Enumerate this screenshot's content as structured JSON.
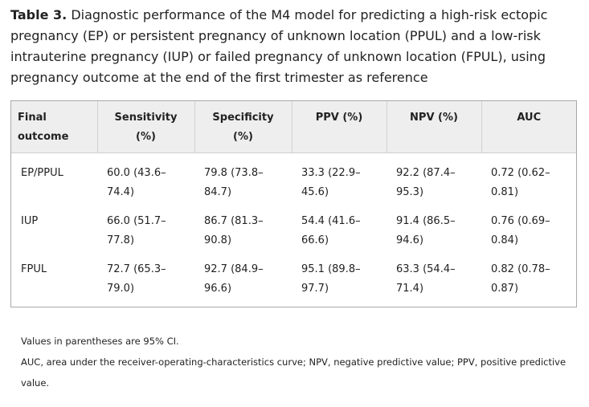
{
  "caption": {
    "label": "Table 3.",
    "text": "Diagnostic performance of the M4 model for predicting a high-risk ectopic pregnancy (EP) or persistent pregnancy of unknown location (PPUL) and a low-risk intrauterine pregnancy (IUP) or failed pregnancy of unknown location (FPUL), using pregnancy outcome at the end of the first trimester as reference"
  },
  "table": {
    "headers": [
      "Final outcome",
      "Sensitivity (%)",
      "Specificity (%)",
      "PPV (%)",
      "NPV (%)",
      "AUC"
    ],
    "rows": [
      [
        "EP/PPUL",
        "60.0 (43.6–74.4)",
        "79.8 (73.8–84.7)",
        "33.3 (22.9–45.6)",
        "92.2 (87.4–95.3)",
        "0.72 (0.62–0.81)"
      ],
      [
        "IUP",
        "66.0 (51.7–77.8)",
        "86.7 (81.3–90.8)",
        "54.4 (41.6–66.6)",
        "91.4 (86.5–94.6)",
        "0.76 (0.69–0.84)"
      ],
      [
        "FPUL",
        "72.7 (65.3–79.0)",
        "92.7 (84.9–96.6)",
        "95.1 (89.8–97.7)",
        "63.3 (54.4–71.4)",
        "0.82 (0.78–0.87)"
      ]
    ]
  },
  "footnotes": [
    "Values in parentheses are 95% CI.",
    "AUC, area under the receiver-operating-characteristics curve; NPV, negative predictive value; PPV, positive predictive value."
  ]
}
